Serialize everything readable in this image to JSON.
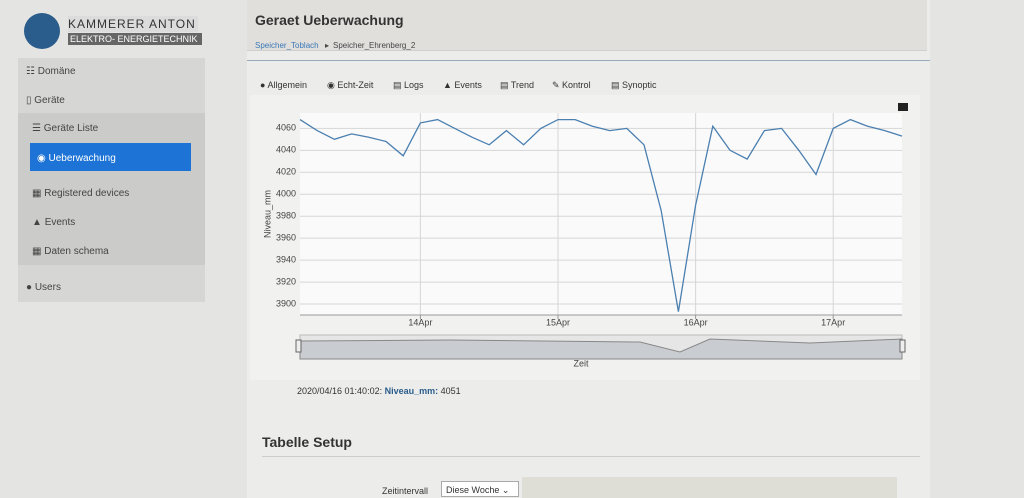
{
  "logo": {
    "name": "KAMMERER ANTON",
    "subtitle": "ELEKTRO- ENERGIETECHNIK"
  },
  "sidebar": {
    "items": [
      "Domäne",
      "Geräte",
      "Geräte Liste",
      "Ueberwachung",
      "Registered devices",
      "Events",
      "Daten schema",
      "Users"
    ]
  },
  "header": {
    "title": "Geraet Ueberwachung",
    "breadcrumb": [
      "Speicher_Toblach",
      "Speicher_Ehrenberg_2"
    ]
  },
  "tabs": [
    "Allgemein",
    "Echt-Zeit",
    "Logs",
    "Events",
    "Trend",
    "Kontrol",
    "Synoptic"
  ],
  "chart_data": {
    "type": "line",
    "x_label": "Zeit",
    "y_label": "Niveau_mm",
    "categories": [
      null,
      null,
      null,
      null,
      null,
      null,
      null,
      "14Apr",
      null,
      null,
      null,
      null,
      null,
      null,
      null,
      "15Apr",
      null,
      null,
      null,
      null,
      null,
      null,
      null,
      "16Apr",
      null,
      null,
      null,
      null,
      null,
      null,
      null,
      "17Apr",
      null,
      null,
      null,
      null
    ],
    "values": [
      4068,
      4058,
      4050,
      4055,
      4052,
      4048,
      4035,
      4065,
      4068,
      4060,
      4052,
      4045,
      4058,
      4045,
      4060,
      4068,
      4068,
      4062,
      4058,
      4060,
      4045,
      3985,
      3893,
      3990,
      4062,
      4040,
      4032,
      4058,
      4060,
      4040,
      4018,
      4060,
      4068,
      4062,
      4058,
      4053
    ],
    "color": "#4a7fb0",
    "ylim": [
      3890,
      4074
    ],
    "yticks": [
      3900,
      3920,
      3940,
      3960,
      3980,
      4000,
      4020,
      4040,
      4060
    ],
    "grid": true
  },
  "tooltip": {
    "time": "2020/04/16 01:40:02:",
    "series": "Niveau_mm:",
    "value": 4051
  },
  "setup": {
    "title": "Tabelle Setup",
    "field": "Zeitintervall",
    "value": "Diese Woche"
  }
}
